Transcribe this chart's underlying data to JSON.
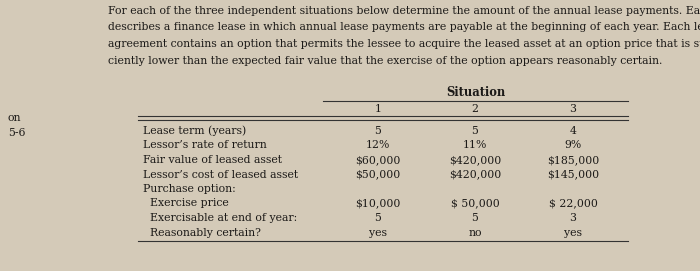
{
  "background_color": "#d4cab8",
  "paragraph_text_lines": [
    "For each of the three independent situations below determine the amount of the annual lease payments. Each",
    "describes a finance lease in which annual lease payments are payable at the beginning of each year. Each lease",
    "agreement contains an option that permits the lessee to acquire the leased asset at an option price that is suffi-",
    "ciently lower than the expected fair value that the exercise of the option appears reasonably certain."
  ],
  "left_margin_text_top": "on",
  "left_margin_text_bottom": "5-6",
  "table_header": "Situation",
  "col_headers": [
    "1",
    "2",
    "3"
  ],
  "row_labels": [
    "Lease term (years)",
    "Lessor’s rate of return",
    "Fair value of leased asset",
    "Lessor’s cost of leased asset",
    "Purchase option:",
    "  Exercise price",
    "  Exercisable at end of year:",
    "  Reasonably certain?"
  ],
  "col1_values": [
    "5",
    "12%",
    "$60,000",
    "$50,000",
    "",
    "$10,000",
    "5",
    "yes"
  ],
  "col2_values": [
    "5",
    "11%",
    "$420,000",
    "$420,000",
    "",
    "$ 50,000",
    "5",
    "no"
  ],
  "col3_values": [
    "4",
    "9%",
    "$185,000",
    "$145,000",
    "",
    "$ 22,000",
    "3",
    "yes"
  ],
  "font_size_para": 7.8,
  "font_size_table": 7.8,
  "text_color": "#1c1a18",
  "line_color": "#333333"
}
